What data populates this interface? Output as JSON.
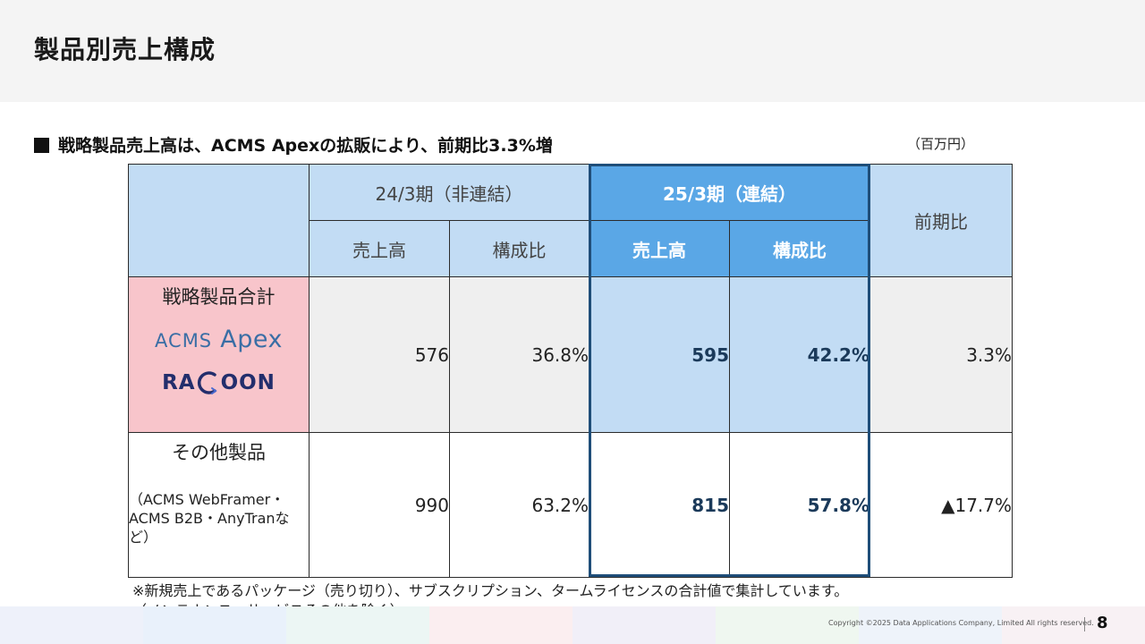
{
  "page": {
    "title": "製品別売上構成",
    "subtitle": "戦略製品売上高は、ACMS Apexの拡販により、前期比3.3%増",
    "unit": "（百万円）"
  },
  "table": {
    "header": {
      "period_prev": "24/3期（非連結）",
      "period_curr": "25/3期（連結）",
      "yoy": "前期比",
      "sales": "売上高",
      "composition": "構成比"
    },
    "rows": [
      {
        "label": "戦略製品合計",
        "logos": [
          "ACMS Apex",
          "RACCOON"
        ],
        "prev_sales": "576",
        "prev_ratio": "36.8%",
        "curr_sales": "595",
        "curr_ratio": "42.2%",
        "yoy": "3.3%"
      },
      {
        "label": "その他製品",
        "note": "（ACMS WebFramer・ACMS B2B・AnyTranなど）",
        "prev_sales": "990",
        "prev_ratio": "63.2%",
        "curr_sales": "815",
        "curr_ratio": "57.8%",
        "yoy": "▲17.7%"
      }
    ]
  },
  "logos": {
    "apex_prefix": "ACMS",
    "apex_suffix": "Apex",
    "raccoon_left": "RA",
    "raccoon_right": "OON"
  },
  "footnote": {
    "line1": "※新規売上であるパッケージ（売り切り）、サブスクリプション、タームライセンスの合計値で集計しています。",
    "line2": "（メンテナンス、サービスその他を除く）"
  },
  "footer": {
    "copyright": "Copyright ©2025  Data Applications Company, Limited All rights reserved.",
    "page_number": "8"
  },
  "colors": {
    "header_light": "#c2dcf4",
    "header_highlight": "#5aa7e6",
    "highlight_border": "#1f4e79",
    "strategic_label_bg": "#f8c5cb",
    "footer_strip": [
      "#eef1fa",
      "#e9f1fb",
      "#ecf6f4",
      "#fbeef0",
      "#f1eff8",
      "#eff7f0",
      "#eef3fa",
      "#f8f1f4"
    ]
  }
}
